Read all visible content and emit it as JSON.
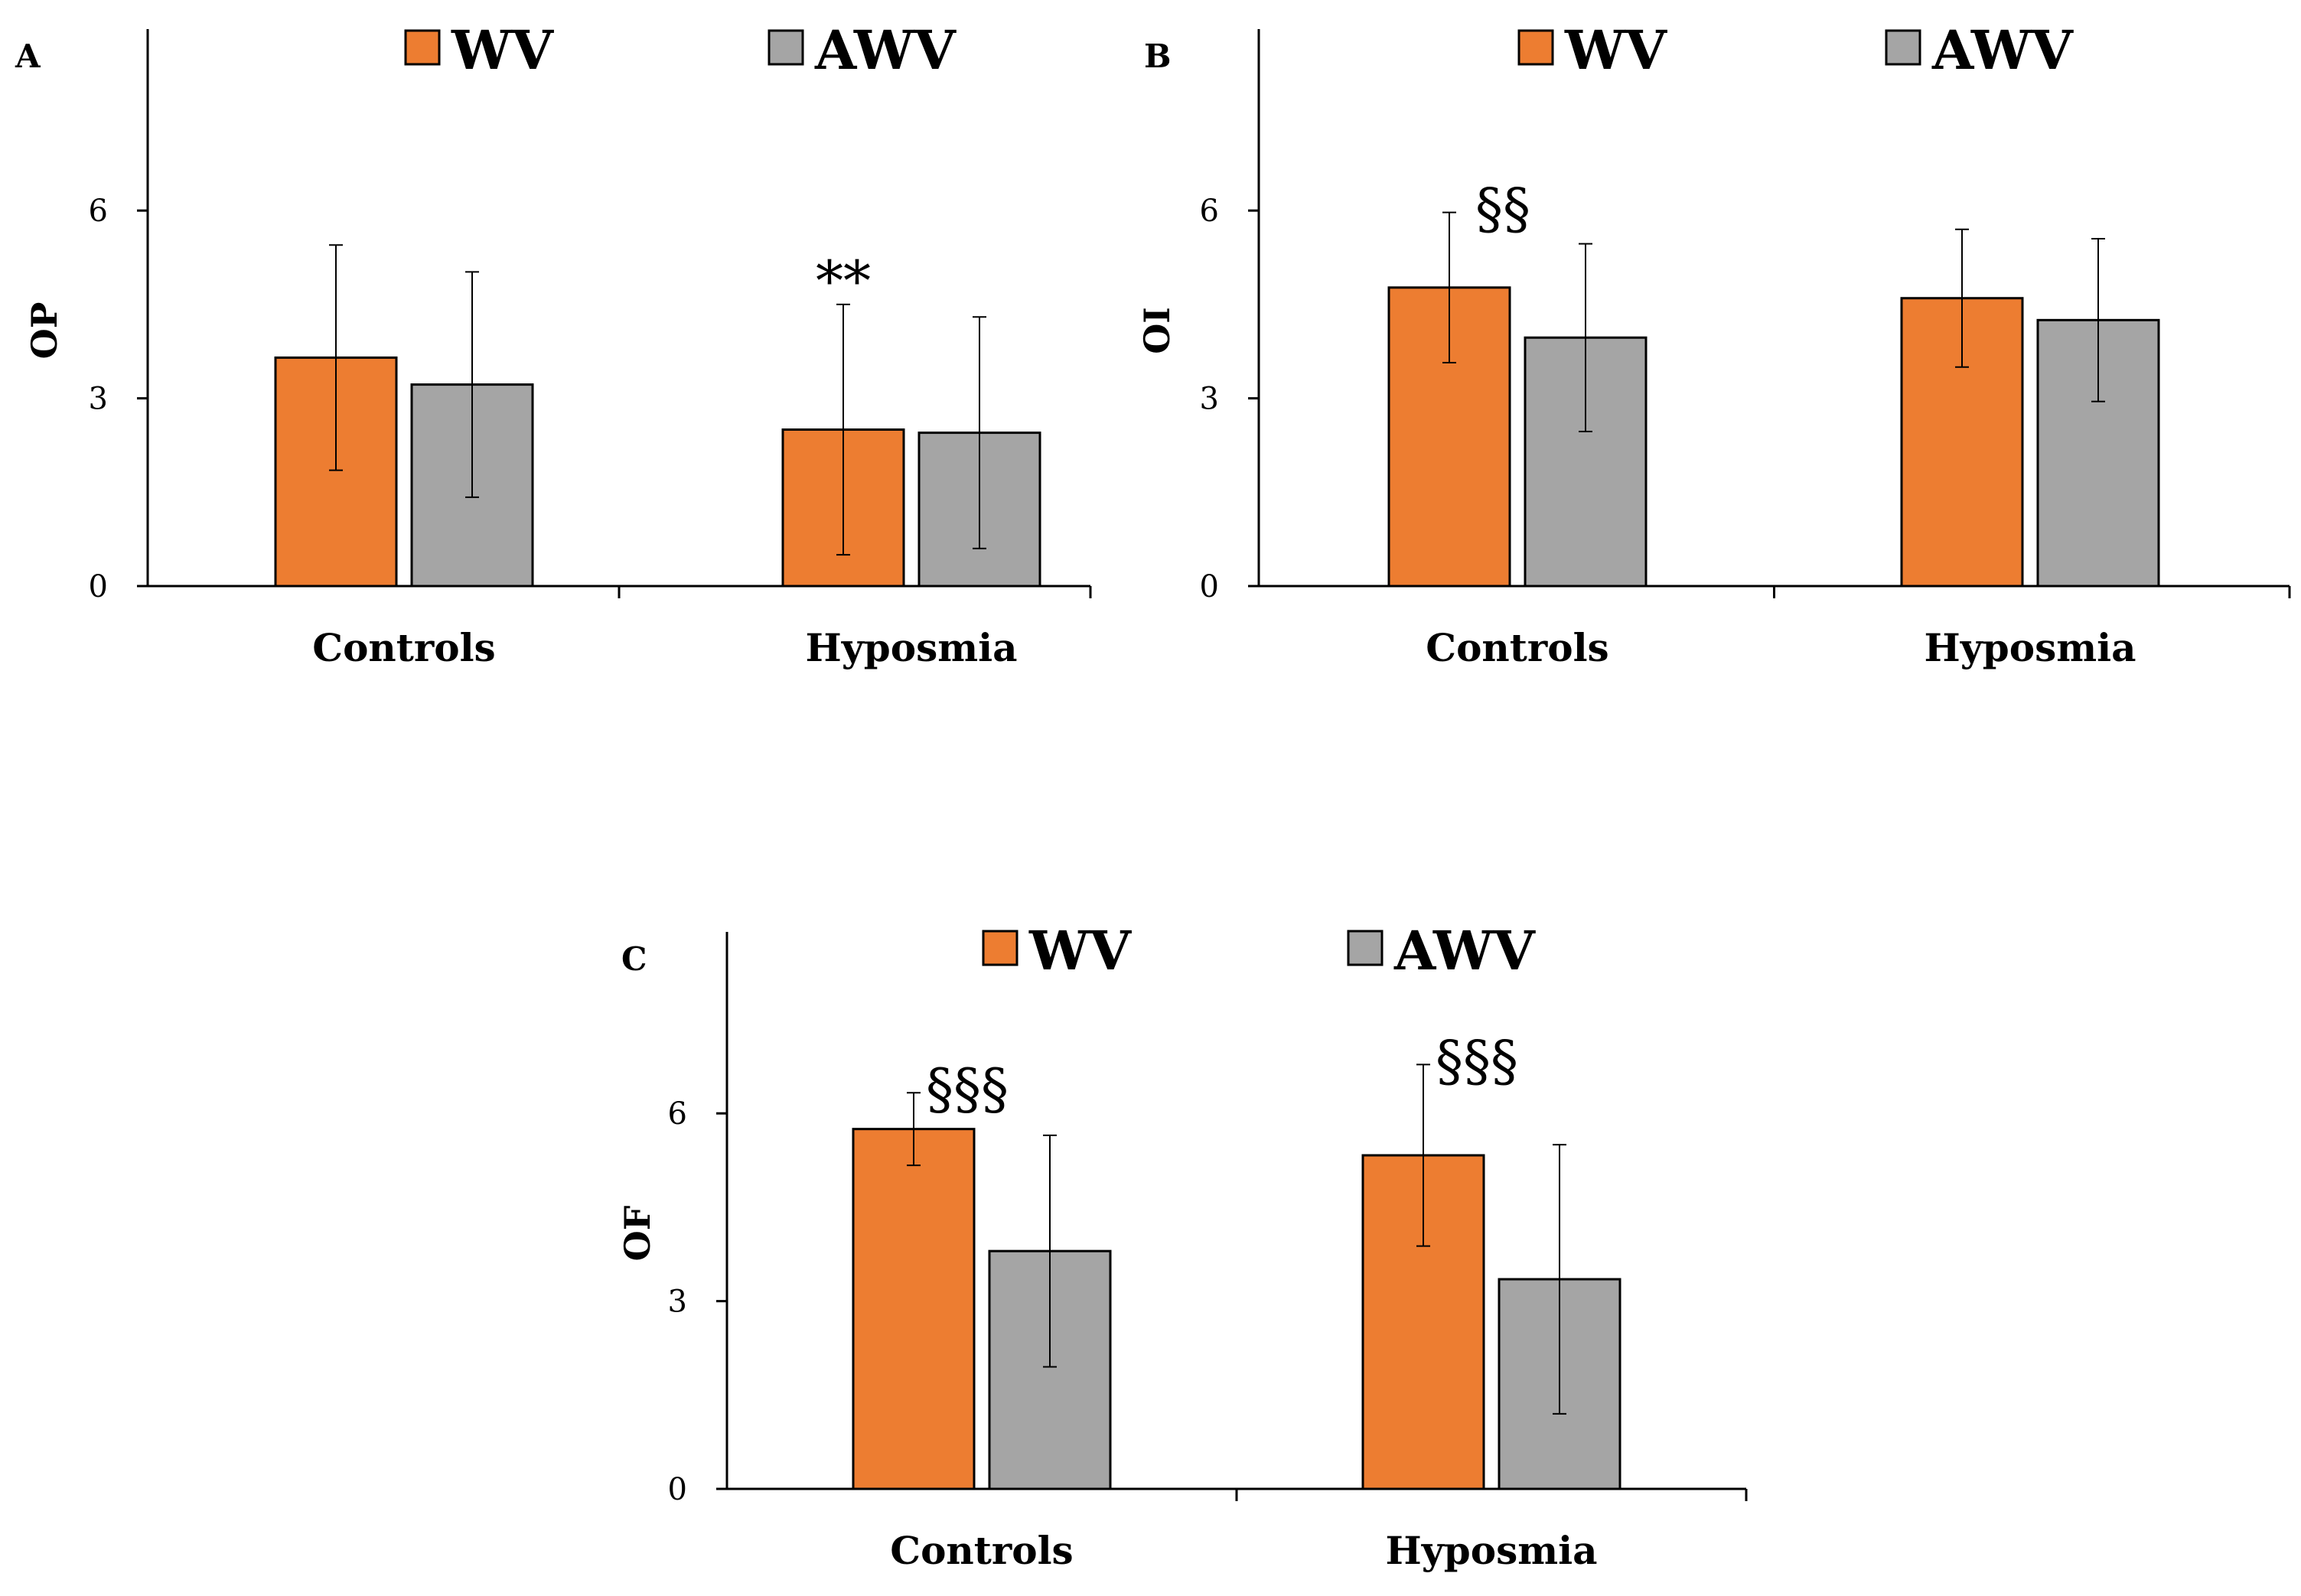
{
  "chart_data": [
    {
      "type": "bar",
      "panel": "A",
      "ylabel": "OP",
      "xlabel": "",
      "categories": [
        "Controls",
        "Hyposmia"
      ],
      "series": [
        {
          "name": "WV",
          "values": [
            3.65,
            2.5
          ],
          "errors": [
            1.8,
            2.0
          ]
        },
        {
          "name": "AWV",
          "values": [
            3.22,
            2.45
          ],
          "errors": [
            1.8,
            1.85
          ]
        }
      ],
      "ylim": [
        0,
        8.9
      ],
      "yticks": [
        0,
        3,
        6
      ],
      "annotations": [
        {
          "category": 1,
          "series": 0,
          "text": "**"
        }
      ]
    },
    {
      "type": "bar",
      "panel": "B",
      "ylabel": "OI",
      "xlabel": "",
      "categories": [
        "Controls",
        "Hyposmia"
      ],
      "series": [
        {
          "name": "WV",
          "values": [
            4.77,
            4.6
          ],
          "errors": [
            1.2,
            1.1
          ]
        },
        {
          "name": "AWV",
          "values": [
            3.97,
            4.25
          ],
          "errors": [
            1.5,
            1.3
          ]
        }
      ],
      "ylim": [
        0,
        8.9
      ],
      "yticks": [
        0,
        3,
        6
      ],
      "annotations": [
        {
          "category": 0,
          "series": 0,
          "text": "§§"
        }
      ]
    },
    {
      "type": "bar",
      "panel": "C",
      "ylabel": "OF",
      "xlabel": "",
      "categories": [
        "Controls",
        "Hyposmia"
      ],
      "series": [
        {
          "name": "WV",
          "values": [
            5.75,
            5.33
          ],
          "errors": [
            0.58,
            1.45
          ]
        },
        {
          "name": "AWV",
          "values": [
            3.8,
            3.35
          ],
          "errors": [
            1.85,
            2.15
          ]
        }
      ],
      "ylim": [
        0,
        8.9
      ],
      "yticks": [
        0,
        3,
        6
      ],
      "annotations": [
        {
          "category": 0,
          "series": 0,
          "text": "§§§"
        },
        {
          "category": 1,
          "series": 0,
          "text": "§§§"
        }
      ]
    }
  ],
  "colors": {
    "WV": "#ed7d31",
    "AWV": "#a5a5a5",
    "axis": "#000000",
    "bar_outline": "#000000"
  }
}
